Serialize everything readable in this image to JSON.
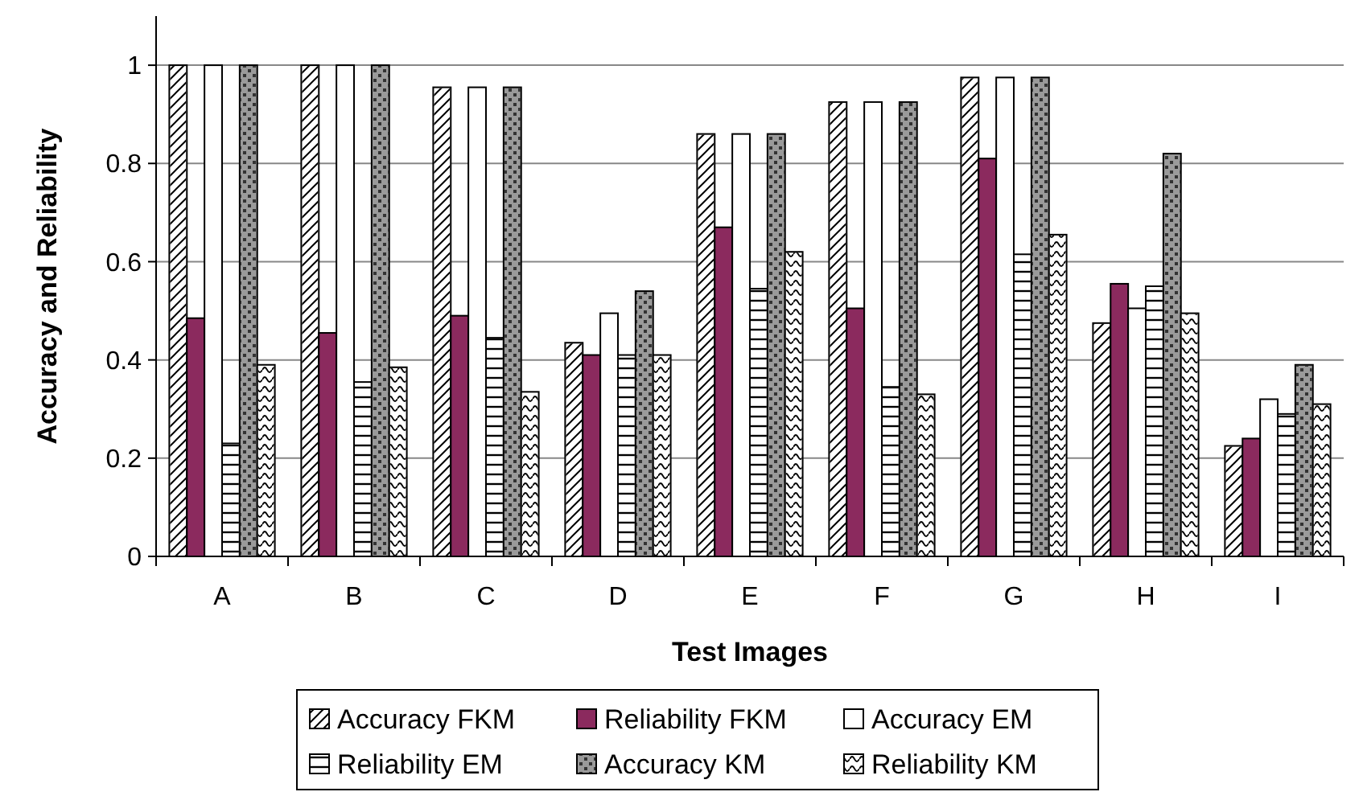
{
  "chart_data": {
    "type": "bar",
    "xlabel": "Test Images",
    "ylabel": "Accuracy and Reliability",
    "categories": [
      "A",
      "B",
      "C",
      "D",
      "E",
      "F",
      "G",
      "H",
      "I"
    ],
    "series": [
      {
        "name": "Accuracy FKM",
        "color": "#ffffff",
        "values": [
          1,
          1,
          0.955,
          0.435,
          0.86,
          0.925,
          0.975,
          0.475,
          0.225
        ]
      },
      {
        "name": "Reliability FKM",
        "color": "#8b2a5e",
        "values": [
          0.485,
          0.455,
          0.49,
          0.41,
          0.67,
          0.505,
          0.81,
          0.555,
          0.24
        ]
      },
      {
        "name": "Accuracy EM",
        "color": "#ffffff",
        "values": [
          1,
          1,
          0.955,
          0.495,
          0.86,
          0.925,
          0.975,
          0.505,
          0.32
        ]
      },
      {
        "name": "Reliability EM",
        "color": "#ffffff",
        "values": [
          0.23,
          0.355,
          0.445,
          0.41,
          0.545,
          0.345,
          0.615,
          0.55,
          0.29
        ]
      },
      {
        "name": "Accuracy KM",
        "color": "#9a9a9a",
        "values": [
          1,
          1,
          0.955,
          0.54,
          0.86,
          0.925,
          0.975,
          0.82,
          0.39
        ]
      },
      {
        "name": "Reliability KM",
        "color": "#ffffff",
        "values": [
          0.39,
          0.385,
          0.335,
          0.41,
          0.62,
          0.33,
          0.655,
          0.495,
          0.31
        ]
      }
    ],
    "ylim": [
      0,
      1.1
    ],
    "yticks": [
      0,
      {
        "value": 0.2,
        "label": "0.2"
      },
      {
        "value": 0.4,
        "label": "0.4"
      },
      {
        "value": 0.6,
        "label": "0.6"
      },
      {
        "value": 0.8,
        "label": "0.8"
      },
      1
    ],
    "grid": "y",
    "legend": "bottom"
  }
}
